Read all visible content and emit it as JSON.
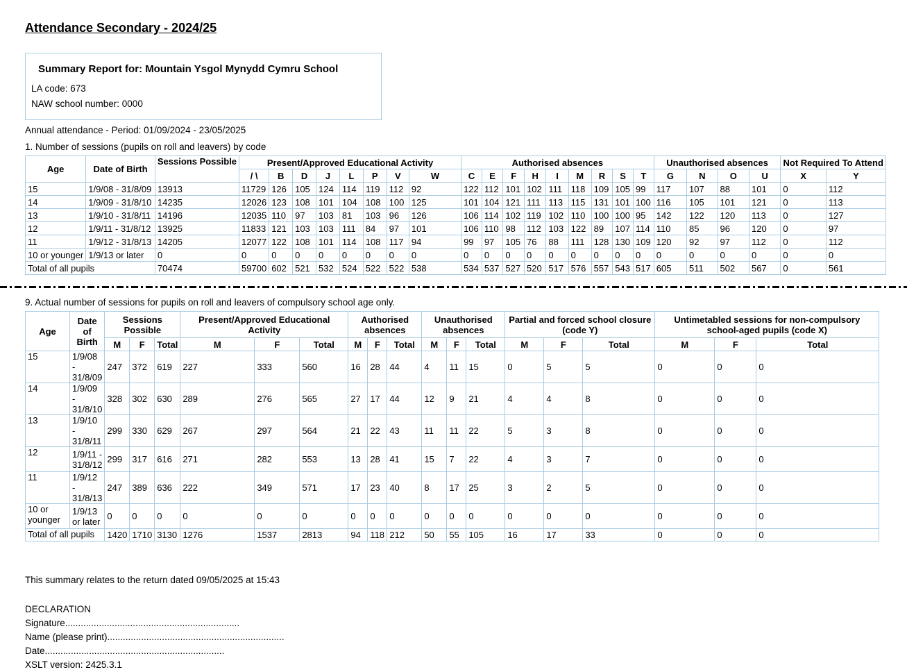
{
  "doc": {
    "title": "Attendance Secondary - 2024/25",
    "summary": {
      "title": "Summary Report for: Mountain Ysgol Mynydd Cymru School",
      "la_line": "LA code: 673",
      "naw_line": "NAW school number: 0000"
    },
    "period_line": "Annual attendance - Period: 01/09/2024 - 23/05/2025",
    "section1_title": "1. Number of sessions (pupils on roll and leavers) by code",
    "section9_title": "9. Actual number of sessions for pupils on roll and leavers of compulsory school age only.",
    "footer": {
      "return_line": "This summary relates to the return dated 09/05/2025 at 15:43",
      "declaration": "DECLARATION",
      "signature_line": "Signature...................................................................",
      "name_line": "Name (please print)....................................................................",
      "date_line": "Date.....................................................................",
      "xslt_line": "XSLT version: 2425.3.1"
    }
  },
  "table1": {
    "cols": [
      80,
      100,
      90,
      42,
      35,
      35,
      35,
      35,
      35,
      33,
      85,
      30,
      31,
      31,
      32,
      33,
      34,
      31,
      30,
      30,
      49,
      46,
      47,
      47,
      48,
      63
    ],
    "head": [
      [
        {
          "t": "Age",
          "rs": 2
        },
        {
          "t": "Date of Birth",
          "rs": 2
        },
        {
          "t": "Sessions Possible",
          "rs": 2,
          "cls": "vtop"
        },
        {
          "t": "Present/Approved Educational Activity",
          "cs": 8
        },
        {
          "t": "Authorised absences",
          "cs": 9
        },
        {
          "t": "Unauthorised absences",
          "cs": 4
        },
        {
          "t": "Not Required To Attend",
          "cs": 2
        }
      ],
      [
        {
          "t": "/ \\"
        },
        {
          "t": "B"
        },
        {
          "t": "D"
        },
        {
          "t": "J"
        },
        {
          "t": "L"
        },
        {
          "t": "P"
        },
        {
          "t": "V"
        },
        {
          "t": "W"
        },
        {
          "t": "C"
        },
        {
          "t": "E"
        },
        {
          "t": "F"
        },
        {
          "t": "H"
        },
        {
          "t": "I"
        },
        {
          "t": "M"
        },
        {
          "t": "R"
        },
        {
          "t": "S"
        },
        {
          "t": "T"
        },
        {
          "t": "G"
        },
        {
          "t": "N"
        },
        {
          "t": "O"
        },
        {
          "t": "U"
        },
        {
          "t": "X"
        },
        {
          "t": "Y"
        }
      ]
    ],
    "body": [
      [
        "15",
        "1/9/08 - 31/8/09",
        "13913",
        "11729",
        "126",
        "105",
        "124",
        "114",
        "119",
        "112",
        "92",
        "122",
        "112",
        "101",
        "102",
        "111",
        "118",
        "109",
        "105",
        "99",
        "117",
        "107",
        "88",
        "101",
        "0",
        "112"
      ],
      [
        "14",
        "1/9/09 - 31/8/10",
        "14235",
        "12026",
        "123",
        "108",
        "101",
        "104",
        "108",
        "100",
        "125",
        "101",
        "104",
        "121",
        "111",
        "113",
        "115",
        "131",
        "101",
        "100",
        "116",
        "105",
        "101",
        "121",
        "0",
        "113"
      ],
      [
        "13",
        "1/9/10 - 31/8/11",
        "14196",
        "12035",
        "110",
        "97",
        "103",
        "81",
        "103",
        "96",
        "126",
        "106",
        "114",
        "102",
        "119",
        "102",
        "110",
        "100",
        "100",
        "95",
        "142",
        "122",
        "120",
        "113",
        "0",
        "127"
      ],
      [
        "12",
        "1/9/11 - 31/8/12",
        "13925",
        "11833",
        "121",
        "103",
        "103",
        "111",
        "84",
        "97",
        "101",
        "106",
        "110",
        "98",
        "112",
        "103",
        "122",
        "89",
        "107",
        "114",
        "110",
        "85",
        "96",
        "120",
        "0",
        "97"
      ],
      [
        "11",
        "1/9/12 - 31/8/13",
        "14205",
        "12077",
        "122",
        "108",
        "101",
        "114",
        "108",
        "117",
        "94",
        "99",
        "97",
        "105",
        "76",
        "88",
        "111",
        "128",
        "130",
        "109",
        "120",
        "92",
        "97",
        "112",
        "0",
        "112"
      ],
      [
        "10 or younger",
        "1/9/13 or later",
        "0",
        "0",
        "0",
        "0",
        "0",
        "0",
        "0",
        "0",
        "0",
        "0",
        "0",
        "0",
        "0",
        "0",
        "0",
        "0",
        "0",
        "0",
        "0",
        "0",
        "0",
        "0",
        "0",
        "0"
      ],
      [
        {
          "t": "Total of all pupils",
          "cs": 2
        },
        "70474",
        "59700",
        "602",
        "521",
        "532",
        "524",
        "522",
        "522",
        "538",
        "534",
        "537",
        "527",
        "520",
        "517",
        "576",
        "557",
        "543",
        "517",
        "605",
        "511",
        "502",
        "567",
        "0",
        "561"
      ]
    ]
  },
  "table2": {
    "cols": [
      64,
      48,
      28,
      26,
      36,
      107,
      65,
      70,
      28,
      28,
      50,
      36,
      28,
      56,
      56,
      56,
      104,
      86,
      60,
      177
    ],
    "head": [
      [
        {
          "t": "Age",
          "rs": 2
        },
        {
          "t": "Date of Birth",
          "rs": 2
        },
        {
          "t": "Sessions Possible",
          "cs": 3
        },
        {
          "t": "Present/Approved Educational Activity",
          "cs": 3
        },
        {
          "t": "Authorised absences",
          "cs": 3
        },
        {
          "t": "Unauthorised absences",
          "cs": 3
        },
        {
          "t": "Partial and forced school closure (code Y)",
          "cs": 3
        },
        {
          "t": "Untimetabled sessions for non-compulsory school-aged pupils (code X)",
          "cs": 3
        }
      ],
      [
        {
          "t": "M"
        },
        {
          "t": "F"
        },
        {
          "t": "Total"
        },
        {
          "t": "M"
        },
        {
          "t": "F"
        },
        {
          "t": "Total"
        },
        {
          "t": "M"
        },
        {
          "t": "F"
        },
        {
          "t": "Total"
        },
        {
          "t": "M"
        },
        {
          "t": "F"
        },
        {
          "t": "Total"
        },
        {
          "t": "M"
        },
        {
          "t": "F"
        },
        {
          "t": "Total"
        },
        {
          "t": "M"
        },
        {
          "t": "F"
        },
        {
          "t": "Total"
        }
      ]
    ],
    "body": [
      [
        "15",
        "1/9/08 - 31/8/09",
        "247",
        "372",
        "619",
        "227",
        "333",
        "560",
        "16",
        "28",
        "44",
        "4",
        "11",
        "15",
        "0",
        "5",
        "5",
        "0",
        "0",
        "0"
      ],
      [
        "14",
        "1/9/09 - 31/8/10",
        "328",
        "302",
        "630",
        "289",
        "276",
        "565",
        "27",
        "17",
        "44",
        "12",
        "9",
        "21",
        "4",
        "4",
        "8",
        "0",
        "0",
        "0"
      ],
      [
        "13",
        "1/9/10 - 31/8/11",
        "299",
        "330",
        "629",
        "267",
        "297",
        "564",
        "21",
        "22",
        "43",
        "11",
        "11",
        "22",
        "5",
        "3",
        "8",
        "0",
        "0",
        "0"
      ],
      [
        "12",
        "1/9/11 - 31/8/12",
        "299",
        "317",
        "616",
        "271",
        "282",
        "553",
        "13",
        "28",
        "41",
        "15",
        "7",
        "22",
        "4",
        "3",
        "7",
        "0",
        "0",
        "0"
      ],
      [
        "11",
        "1/9/12 - 31/8/13",
        "247",
        "389",
        "636",
        "222",
        "349",
        "571",
        "17",
        "23",
        "40",
        "8",
        "17",
        "25",
        "3",
        "2",
        "5",
        "0",
        "0",
        "0"
      ],
      [
        "10 or younger",
        "1/9/13 or later",
        "0",
        "0",
        "0",
        "0",
        "0",
        "0",
        "0",
        "0",
        "0",
        "0",
        "0",
        "0",
        "0",
        "0",
        "0",
        "0",
        "0",
        "0"
      ],
      [
        {
          "t": "Total of all pupils",
          "cs": 2
        },
        "1420",
        "1710",
        "3130",
        "1276",
        "1537",
        "2813",
        "94",
        "118",
        "212",
        "50",
        "55",
        "105",
        "16",
        "17",
        "33",
        "0",
        "0",
        "0"
      ]
    ]
  },
  "colors": {
    "table_border": "#a9cbe2",
    "text": "#000000",
    "background": "#ffffff"
  }
}
